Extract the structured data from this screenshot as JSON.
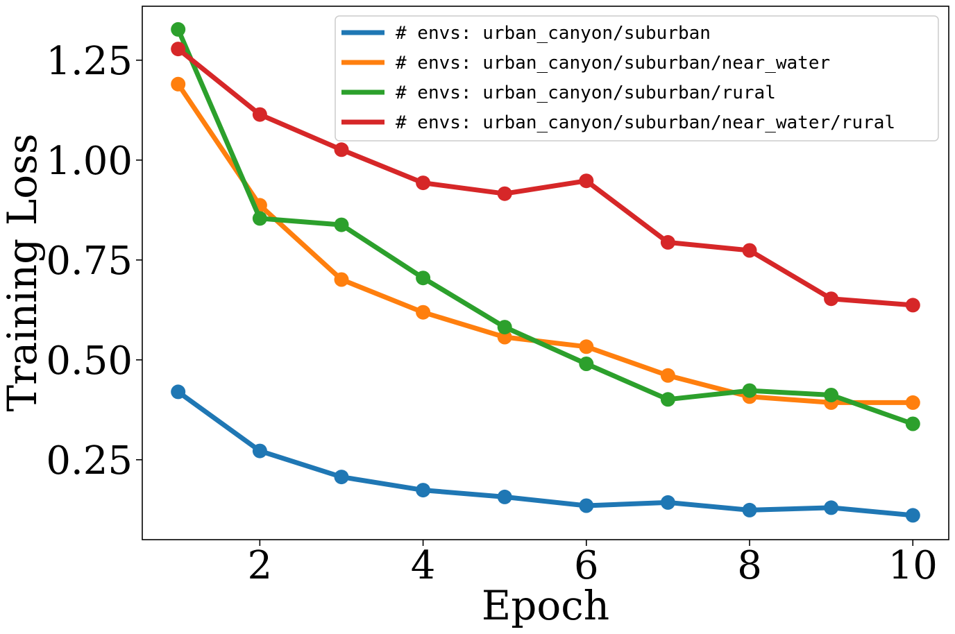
{
  "chart_data": {
    "type": "line",
    "title": "",
    "xlabel": "Epoch",
    "ylabel": "Training Loss",
    "x": [
      1,
      2,
      3,
      4,
      5,
      6,
      7,
      8,
      9,
      10
    ],
    "xlim": [
      0.56,
      10.44
    ],
    "ylim": [
      0.05,
      1.385
    ],
    "xticks": [
      2,
      4,
      6,
      8,
      10
    ],
    "xtick_labels": [
      "2",
      "4",
      "6",
      "8",
      "10"
    ],
    "yticks": [
      0.25,
      0.5,
      0.75,
      1.0,
      1.25
    ],
    "ytick_labels": [
      "0.25",
      "0.50",
      "0.75",
      "1.00",
      "1.25"
    ],
    "grid": false,
    "legend_position": "top-right",
    "series": [
      {
        "name": "# envs: urban_canyon/suburban",
        "color": "#1f77b4",
        "values": [
          0.42,
          0.272,
          0.207,
          0.174,
          0.157,
          0.135,
          0.143,
          0.124,
          0.13,
          0.111
        ]
      },
      {
        "name": "# envs: urban_canyon/suburban/near_water",
        "color": "#ff7f0e",
        "values": [
          1.19,
          0.887,
          0.701,
          0.619,
          0.557,
          0.533,
          0.461,
          0.408,
          0.393,
          0.393
        ]
      },
      {
        "name": "# envs: urban_canyon/suburban/rural",
        "color": "#2ca02c",
        "values": [
          1.327,
          0.854,
          0.838,
          0.705,
          0.582,
          0.49,
          0.401,
          0.423,
          0.412,
          0.34
        ]
      },
      {
        "name": "# envs: urban_canyon/suburban/near_water/rural",
        "color": "#d62728",
        "values": [
          1.278,
          1.114,
          1.026,
          0.943,
          0.916,
          0.948,
          0.794,
          0.774,
          0.653,
          0.637
        ]
      }
    ]
  }
}
